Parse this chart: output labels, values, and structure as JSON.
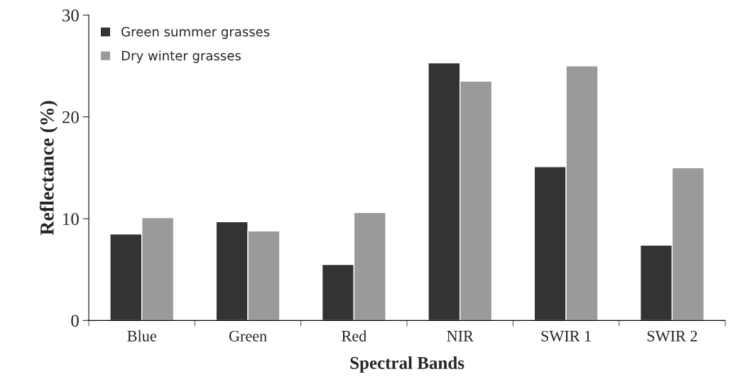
{
  "chart_data": {
    "type": "bar",
    "xlabel": "Spectral Bands",
    "ylabel": "Reflectance (%)",
    "categories": [
      "Blue",
      "Green",
      "Red",
      "NIR",
      "SWIR 1",
      "SWIR 2"
    ],
    "series": [
      {
        "name": "Green summer grasses",
        "color": "#333333",
        "values": [
          8.5,
          9.7,
          5.5,
          25.3,
          15.1,
          7.4
        ]
      },
      {
        "name": "Dry winter grasses",
        "color": "#9a9a9c",
        "values": [
          10.1,
          8.8,
          10.6,
          23.5,
          25.0,
          15.0
        ]
      }
    ],
    "ylim": [
      0,
      30
    ],
    "yticks": [
      0,
      10,
      20,
      30
    ],
    "grid": false,
    "legend": "top left"
  }
}
